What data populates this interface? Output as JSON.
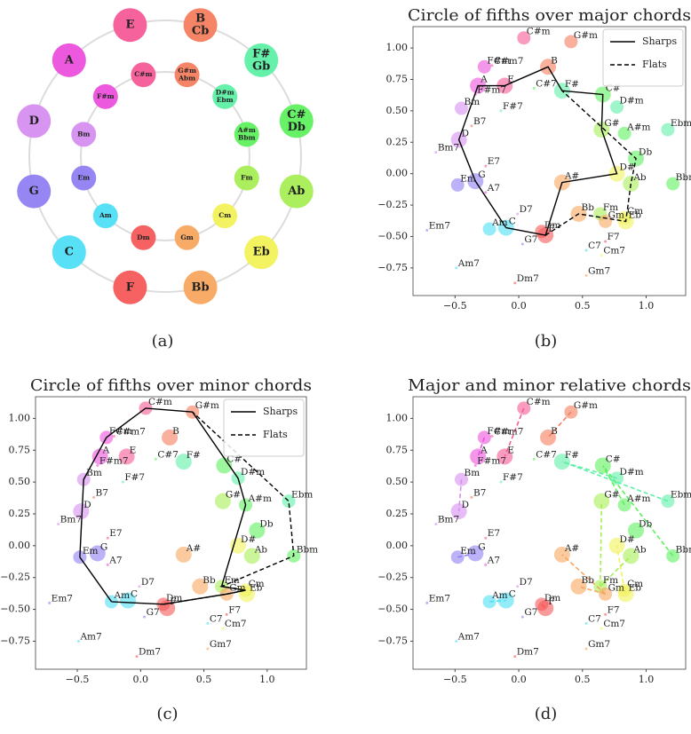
{
  "circle": {
    "caption": "(a)",
    "major": [
      {
        "label": [
          "E"
        ],
        "color": "#f55a96"
      },
      {
        "label": [
          "B",
          "Cb"
        ],
        "color": "#f57d5e"
      },
      {
        "label": [
          "F#",
          "Gb"
        ],
        "color": "#5ef0a6"
      },
      {
        "label": [
          "C#",
          "Db"
        ],
        "color": "#5ef05e"
      },
      {
        "label": [
          "Ab"
        ],
        "color": "#a6ee55"
      },
      {
        "label": [
          "Eb"
        ],
        "color": "#f2f25a"
      },
      {
        "label": [
          "Bb"
        ],
        "color": "#f8a65e"
      },
      {
        "label": [
          "F"
        ],
        "color": "#f55858"
      },
      {
        "label": [
          "C"
        ],
        "color": "#4fdff5"
      },
      {
        "label": [
          "G"
        ],
        "color": "#8f7ff2"
      },
      {
        "label": [
          "D"
        ],
        "color": "#d68ef0"
      },
      {
        "label": [
          "A"
        ],
        "color": "#ec50dc"
      }
    ],
    "minor": [
      {
        "label": [
          "C#m"
        ],
        "color": "#f55a96"
      },
      {
        "label": [
          "G#m",
          "Abm"
        ],
        "color": "#f57d5e"
      },
      {
        "label": [
          "D#m",
          "Ebm"
        ],
        "color": "#5ef0a6"
      },
      {
        "label": [
          "A#m",
          "Bbm"
        ],
        "color": "#5ef05e"
      },
      {
        "label": [
          "Fm"
        ],
        "color": "#a6ee55"
      },
      {
        "label": [
          "Cm"
        ],
        "color": "#f2f25a"
      },
      {
        "label": [
          "Gm"
        ],
        "color": "#f8a65e"
      },
      {
        "label": [
          "Dm"
        ],
        "color": "#f55858"
      },
      {
        "label": [
          "Am"
        ],
        "color": "#4fdff5"
      },
      {
        "label": [
          "Em"
        ],
        "color": "#8f7ff2"
      },
      {
        "label": [
          "Bm"
        ],
        "color": "#d68ef0"
      },
      {
        "label": [
          "F#m"
        ],
        "color": "#ec50dc"
      }
    ]
  },
  "points": [
    {
      "name": "C",
      "x": -0.1,
      "y": -0.43,
      "color": "#4fdff5"
    },
    {
      "name": "G",
      "x": -0.34,
      "y": -0.06,
      "color": "#8f7ff2"
    },
    {
      "name": "D",
      "x": -0.47,
      "y": 0.27,
      "color": "#d68ef0"
    },
    {
      "name": "A",
      "x": -0.32,
      "y": 0.7,
      "color": "#ec50dc"
    },
    {
      "name": "E",
      "x": -0.11,
      "y": 0.7,
      "color": "#f55a96"
    },
    {
      "name": "B",
      "x": 0.23,
      "y": 0.85,
      "color": "#f57d5e"
    },
    {
      "name": "F#",
      "x": 0.34,
      "y": 0.66,
      "color": "#5ef0a6"
    },
    {
      "name": "C#",
      "x": 0.66,
      "y": 0.63,
      "color": "#5ef05e"
    },
    {
      "name": "G#",
      "x": 0.65,
      "y": 0.35,
      "color": "#a6ee55"
    },
    {
      "name": "D#",
      "x": 0.77,
      "y": 0.0,
      "color": "#f2f25a"
    },
    {
      "name": "A#",
      "x": 0.34,
      "y": -0.07,
      "color": "#f8a65e"
    },
    {
      "name": "F",
      "x": 0.21,
      "y": -0.49,
      "color": "#f55858"
    },
    {
      "name": "Db",
      "x": 0.92,
      "y": 0.12,
      "color": "#5ef05e"
    },
    {
      "name": "Ab",
      "x": 0.88,
      "y": -0.08,
      "color": "#a6ee55"
    },
    {
      "name": "Eb",
      "x": 0.84,
      "y": -0.38,
      "color": "#f2f25a"
    },
    {
      "name": "Bb",
      "x": 0.47,
      "y": -0.32,
      "color": "#f8a65e"
    },
    {
      "name": "Am",
      "x": -0.23,
      "y": -0.44,
      "color": "#4fdff5"
    },
    {
      "name": "Em",
      "x": -0.48,
      "y": -0.09,
      "color": "#8f7ff2"
    },
    {
      "name": "Bm",
      "x": -0.45,
      "y": 0.52,
      "color": "#d68ef0"
    },
    {
      "name": "F#m",
      "x": -0.27,
      "y": 0.85,
      "color": "#ec50dc"
    },
    {
      "name": "C#m",
      "x": 0.04,
      "y": 1.08,
      "color": "#f55a96"
    },
    {
      "name": "G#m",
      "x": 0.41,
      "y": 1.05,
      "color": "#f57d5e"
    },
    {
      "name": "D#m",
      "x": 0.77,
      "y": 0.53,
      "color": "#5ef0a6"
    },
    {
      "name": "A#m",
      "x": 0.83,
      "y": 0.32,
      "color": "#5ef05e"
    },
    {
      "name": "Fm",
      "x": 0.64,
      "y": -0.32,
      "color": "#a6ee55"
    },
    {
      "name": "Cm",
      "x": 0.83,
      "y": -0.35,
      "color": "#f2f25a"
    },
    {
      "name": "Gm",
      "x": 0.68,
      "y": -0.38,
      "color": "#f8a65e"
    },
    {
      "name": "Dm",
      "x": 0.18,
      "y": -0.46,
      "color": "#f55858"
    },
    {
      "name": "Ebm",
      "x": 1.17,
      "y": 0.35,
      "color": "#5ef0a6"
    },
    {
      "name": "Bbm",
      "x": 1.21,
      "y": -0.08,
      "color": "#5ef05e"
    },
    {
      "name": "C#m7",
      "x": -0.21,
      "y": 0.86,
      "color": "#f55a96"
    },
    {
      "name": "F#m7",
      "x": -0.34,
      "y": 0.63,
      "color": "#ec50dc"
    },
    {
      "name": "C#7",
      "x": 0.12,
      "y": 0.68,
      "color": "#5ef05e"
    },
    {
      "name": "F#7",
      "x": -0.14,
      "y": 0.5,
      "color": "#5ef0a6"
    },
    {
      "name": "B7",
      "x": -0.37,
      "y": 0.38,
      "color": "#f57d5e"
    },
    {
      "name": "Bm7",
      "x": -0.65,
      "y": 0.17,
      "color": "#d68ef0"
    },
    {
      "name": "E7",
      "x": -0.26,
      "y": 0.06,
      "color": "#f55a96"
    },
    {
      "name": "A7",
      "x": -0.26,
      "y": -0.15,
      "color": "#ec50dc"
    },
    {
      "name": "D7",
      "x": -0.01,
      "y": -0.32,
      "color": "#d68ef0"
    },
    {
      "name": "Em7",
      "x": -0.72,
      "y": -0.45,
      "color": "#8f7ff2"
    },
    {
      "name": "G7",
      "x": 0.03,
      "y": -0.56,
      "color": "#8f7ff2"
    },
    {
      "name": "F7",
      "x": 0.68,
      "y": -0.54,
      "color": "#f55858"
    },
    {
      "name": "C7",
      "x": 0.53,
      "y": -0.61,
      "color": "#4fdff5"
    },
    {
      "name": "Cm7",
      "x": 0.65,
      "y": -0.65,
      "color": "#f2f25a"
    },
    {
      "name": "Am7",
      "x": -0.49,
      "y": -0.75,
      "color": "#4fdff5"
    },
    {
      "name": "Gm7",
      "x": 0.53,
      "y": -0.81,
      "color": "#f8a65e"
    },
    {
      "name": "Dm7",
      "x": -0.03,
      "y": -0.87,
      "color": "#f55858"
    }
  ],
  "axes": {
    "xlim": [
      -0.83,
      1.31
    ],
    "ylim": [
      -0.97,
      1.17
    ],
    "xticks": [
      {
        "value": -0.5,
        "label": "−0.5"
      },
      {
        "value": 0,
        "label": "0.0"
      },
      {
        "value": 0.5,
        "label": "0.5"
      },
      {
        "value": 1,
        "label": "1.0"
      }
    ],
    "yticks": [
      {
        "value": -0.75,
        "label": "−0.75"
      },
      {
        "value": -0.5,
        "label": "−0.50"
      },
      {
        "value": -0.25,
        "label": "−0.25"
      },
      {
        "value": 0,
        "label": "0.00"
      },
      {
        "value": 0.25,
        "label": "0.25"
      },
      {
        "value": 0.5,
        "label": "0.50"
      },
      {
        "value": 0.75,
        "label": "0.75"
      },
      {
        "value": 1,
        "label": "1.00"
      }
    ]
  },
  "panels": [
    {
      "title": "Circle of fifths over major chords",
      "caption": "(b)",
      "legend": "upper right",
      "lines": [
        {
          "name": "Sharps",
          "style": "solid",
          "color": "#000000",
          "chords": [
            "C",
            "G",
            "D",
            "A",
            "E",
            "B",
            "F#",
            "C#",
            "G#",
            "D#",
            "A#",
            "F",
            "C"
          ]
        },
        {
          "name": "Flats",
          "style": "dashed",
          "color": "#000000",
          "chords": [
            "F",
            "Bb",
            "Eb",
            "Ab",
            "Db",
            "F#"
          ]
        }
      ]
    },
    {
      "title": "Circle of fifths over minor chords",
      "caption": "(c)",
      "legend": "upper right",
      "lines": [
        {
          "name": "Sharps",
          "style": "solid",
          "color": "#000000",
          "chords": [
            "Am",
            "Em",
            "Bm",
            "F#m",
            "C#m",
            "G#m",
            "D#m",
            "A#m",
            "Fm",
            "Cm",
            "Gm",
            "Dm",
            "Am"
          ]
        },
        {
          "name": "Flats",
          "style": "dashed",
          "color": "#000000",
          "chords": [
            "Dm",
            "Gm",
            "Cm",
            "Fm",
            "Bbm",
            "Ebm",
            "G#m"
          ]
        }
      ]
    },
    {
      "title": "Major and minor relative chords",
      "caption": "(d)",
      "pair_style": "dashed",
      "pairs": [
        [
          "C#m",
          "E"
        ],
        [
          "G#m",
          "B"
        ],
        [
          "F#m",
          "A"
        ],
        [
          "Bm",
          "D"
        ],
        [
          "Em",
          "G"
        ],
        [
          "Am",
          "C"
        ],
        [
          "Dm",
          "F"
        ],
        [
          "Gm",
          "A#"
        ],
        [
          "Gm",
          "Bb"
        ],
        [
          "Cm",
          "D#"
        ],
        [
          "Cm",
          "Eb"
        ],
        [
          "Fm",
          "G#"
        ],
        [
          "Fm",
          "Ab"
        ],
        [
          "A#m",
          "C#"
        ],
        [
          "Bbm",
          "C#"
        ],
        [
          "D#m",
          "F#"
        ],
        [
          "Ebm",
          "F#"
        ]
      ]
    }
  ]
}
